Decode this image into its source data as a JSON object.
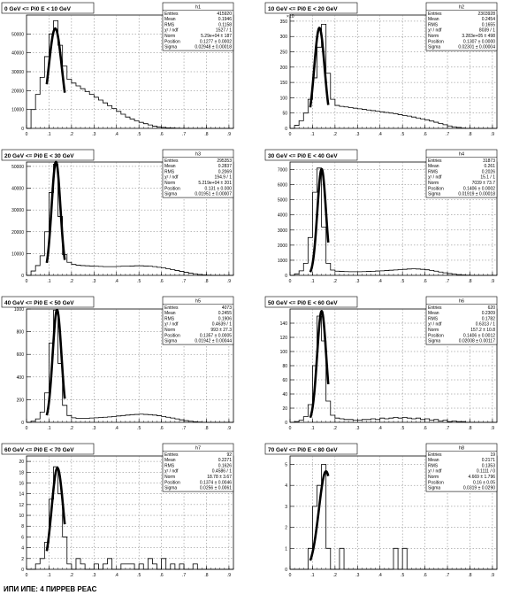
{
  "footer_text": "ИПИ ИПЕ: 4 ПИРРЕВ РЕАС",
  "chart_data": [
    {
      "type": "histogram",
      "title": "0 GeV <= Pi0 E < 10 GeV",
      "x_range": [
        0,
        0.92
      ],
      "xticks": [
        0,
        0.1,
        0.2,
        0.3,
        0.4,
        0.5,
        0.6,
        0.7,
        0.8,
        0.9
      ],
      "ylim": [
        0,
        60000
      ],
      "yticks": [
        0,
        10000,
        20000,
        30000,
        40000,
        50000
      ],
      "ytick_labels": [
        "0",
        "10000",
        "20000",
        "30000",
        "40000",
        "50000"
      ],
      "y_exponent": "",
      "bin_width": 0.02,
      "bin_contents": [
        0,
        10000,
        18000,
        27000,
        38000,
        50000,
        57000,
        44000,
        33000,
        26000,
        24000,
        22500,
        21000,
        19500,
        18000,
        16500,
        15000,
        13500,
        12000,
        10500,
        9000,
        7500,
        6000,
        5000,
        4000,
        3200,
        2500,
        1800,
        1200,
        800,
        500,
        300,
        200,
        100,
        50,
        20,
        10,
        5,
        0,
        0,
        0,
        0,
        0,
        0,
        0,
        0
      ],
      "fit_range": [
        0.09,
        0.17
      ],
      "fit": {
        "norm": 52900,
        "mean": 0.1277,
        "sigma": 0.02948
      },
      "stats": {
        "name": "h1",
        "rows": [
          {
            "label": "Entries",
            "value": "415920"
          },
          {
            "label": "Mean",
            "value": "0.1946"
          },
          {
            "label": "RMS",
            "value": "0.1158"
          },
          {
            "label": "χ² / ndf",
            "value": "1527 / 1"
          },
          {
            "label": "Norm",
            "value": "5.29e+04 ± 187"
          },
          {
            "label": "Position",
            "value": "0.1277 ± 0.0002"
          },
          {
            "label": "Sigma",
            "value": "0.02948 ± 0.00018"
          }
        ]
      }
    },
    {
      "type": "histogram",
      "title": "10 GeV <= Pi0 E < 20 GeV",
      "x_range": [
        0,
        0.92
      ],
      "xticks": [
        0,
        0.1,
        0.2,
        0.3,
        0.4,
        0.5,
        0.6,
        0.7,
        0.8,
        0.9
      ],
      "ylim": [
        0,
        370
      ],
      "yticks": [
        0,
        50,
        100,
        150,
        200,
        250,
        300,
        350
      ],
      "ytick_labels": [
        "0",
        "50",
        "100",
        "150",
        "200",
        "250",
        "300",
        "350"
      ],
      "y_exponent": "×10",
      "bin_width": 0.02,
      "bin_contents": [
        0,
        10,
        25,
        50,
        95,
        165,
        265,
        340,
        180,
        95,
        75,
        72,
        70,
        68,
        66,
        64,
        62,
        60,
        58,
        56,
        54,
        52,
        50,
        48,
        45,
        42,
        40,
        37,
        34,
        31,
        28,
        24,
        20,
        16,
        12,
        8,
        5,
        3,
        1,
        0,
        0,
        0,
        0,
        0,
        0,
        0
      ],
      "fit_range": [
        0.09,
        0.17
      ],
      "fit": {
        "norm": 328.3,
        "mean": 0.1307,
        "sigma": 0.02301
      },
      "stats": {
        "name": "h2",
        "rows": [
          {
            "label": "Entries",
            "value": "2303928"
          },
          {
            "label": "Mean",
            "value": "0.2454"
          },
          {
            "label": "RMS",
            "value": "0.1655"
          },
          {
            "label": "χ² / ndf",
            "value": "8039 / 1"
          },
          {
            "label": "Norm",
            "value": "3.283e+05 ± 498"
          },
          {
            "label": "Position",
            "value": "0.1307 ± 0.0000"
          },
          {
            "label": "Sigma",
            "value": "0.02301 ± 0.00004"
          }
        ]
      }
    },
    {
      "type": "histogram",
      "title": "20 GeV <= Pi0 E < 30 GeV",
      "x_range": [
        0,
        0.92
      ],
      "xticks": [
        0,
        0.1,
        0.2,
        0.3,
        0.4,
        0.5,
        0.6,
        0.7,
        0.8,
        0.9
      ],
      "ylim": [
        0,
        52000
      ],
      "yticks": [
        0,
        10000,
        20000,
        30000,
        40000,
        50000
      ],
      "ytick_labels": [
        "0",
        "10000",
        "20000",
        "30000",
        "40000",
        "50000"
      ],
      "y_exponent": "",
      "bin_width": 0.02,
      "bin_contents": [
        0,
        2000,
        4500,
        9000,
        20000,
        38000,
        51000,
        27000,
        9500,
        6000,
        5000,
        4700,
        4500,
        4400,
        4300,
        4200,
        4100,
        4000,
        4000,
        4000,
        4100,
        4200,
        4200,
        4300,
        4400,
        4400,
        4300,
        4200,
        4000,
        3700,
        3400,
        3000,
        2600,
        2200,
        1800,
        1400,
        1000,
        700,
        400,
        200,
        100,
        0,
        0,
        0,
        0,
        0
      ],
      "fit_range": [
        0.09,
        0.17
      ],
      "fit": {
        "norm": 52190,
        "mean": 0.131,
        "sigma": 0.01951
      },
      "stats": {
        "name": "h3",
        "rows": [
          {
            "label": "Entries",
            "value": "295353"
          },
          {
            "label": "Mean",
            "value": "0.2837"
          },
          {
            "label": "RMS",
            "value": "0.2069"
          },
          {
            "label": "χ² / ndf",
            "value": "194.9 / 1"
          },
          {
            "label": "Norm",
            "value": "5.219e+04 ± 201"
          },
          {
            "label": "Position",
            "value": "0.131 ± 0.000"
          },
          {
            "label": "Sigma",
            "value": "0.01951 ± 0.00007"
          }
        ]
      }
    },
    {
      "type": "histogram",
      "title": "30 GeV <= Pi0 E < 40 GeV",
      "x_range": [
        0,
        0.92
      ],
      "xticks": [
        0,
        0.1,
        0.2,
        0.3,
        0.4,
        0.5,
        0.6,
        0.7,
        0.8,
        0.9
      ],
      "ylim": [
        0,
        7500
      ],
      "yticks": [
        0,
        1000,
        2000,
        3000,
        4000,
        5000,
        6000,
        7000
      ],
      "ytick_labels": [
        "0",
        "1000",
        "2000",
        "3000",
        "4000",
        "5000",
        "6000",
        "7000"
      ],
      "y_exponent": "",
      "bin_width": 0.02,
      "bin_contents": [
        0,
        100,
        300,
        800,
        2500,
        5500,
        7100,
        3200,
        800,
        350,
        280,
        260,
        250,
        240,
        240,
        240,
        250,
        260,
        270,
        290,
        300,
        320,
        340,
        360,
        380,
        400,
        420,
        430,
        420,
        400,
        370,
        330,
        280,
        220,
        170,
        120,
        80,
        50,
        30,
        10,
        0,
        0,
        0,
        0,
        0,
        0
      ],
      "fit_range": [
        0.09,
        0.17
      ],
      "fit": {
        "norm": 7039,
        "mean": 0.1406,
        "sigma": 0.01919
      },
      "stats": {
        "name": "h4",
        "rows": [
          {
            "label": "Entries",
            "value": "31873"
          },
          {
            "label": "Mean",
            "value": "0.261"
          },
          {
            "label": "RMS",
            "value": "0.2026"
          },
          {
            "label": "χ² / ndf",
            "value": "15.1 / 1"
          },
          {
            "label": "Norm",
            "value": "7039 ± 73.7"
          },
          {
            "label": "Position",
            "value": "0.1406 ± 0.0002"
          },
          {
            "label": "Sigma",
            "value": "0.01919 ± 0.00018"
          }
        ]
      }
    },
    {
      "type": "histogram",
      "title": "40 GeV <= Pi0 E < 50 GeV",
      "x_range": [
        0,
        0.92
      ],
      "xticks": [
        0,
        0.1,
        0.2,
        0.3,
        0.4,
        0.5,
        0.6,
        0.7,
        0.8,
        0.9
      ],
      "ylim": [
        0,
        1000
      ],
      "yticks": [
        0,
        200,
        400,
        600,
        800,
        1000
      ],
      "ytick_labels": [
        "0",
        "200",
        "400",
        "600",
        "800",
        "1000"
      ],
      "y_exponent": "",
      "bin_width": 0.02,
      "bin_contents": [
        0,
        10,
        30,
        90,
        260,
        700,
        990,
        520,
        150,
        60,
        40,
        35,
        35,
        35,
        38,
        40,
        42,
        45,
        48,
        52,
        56,
        60,
        64,
        68,
        70,
        72,
        70,
        68,
        64,
        58,
        52,
        45,
        38,
        30,
        22,
        15,
        10,
        6,
        3,
        1,
        0,
        0,
        0,
        0,
        0,
        0
      ],
      "fit_range": [
        0.09,
        0.17
      ],
      "fit": {
        "norm": 993,
        "mean": 0.1357,
        "sigma": 0.01942
      },
      "stats": {
        "name": "h5",
        "rows": [
          {
            "label": "Entries",
            "value": "4073"
          },
          {
            "label": "Mean",
            "value": "0.2455"
          },
          {
            "label": "RMS",
            "value": "0.1906"
          },
          {
            "label": "χ² / ndf",
            "value": "0.4639 / 1"
          },
          {
            "label": "Norm",
            "value": "993 ± 27.3"
          },
          {
            "label": "Position",
            "value": "0.1357 ± 0.0005"
          },
          {
            "label": "Sigma",
            "value": "0.01942 ± 0.00044"
          }
        ]
      }
    },
    {
      "type": "histogram",
      "title": "50 GeV <= Pi0 E < 60 GeV",
      "x_range": [
        0,
        0.92
      ],
      "xticks": [
        0,
        0.1,
        0.2,
        0.3,
        0.4,
        0.5,
        0.6,
        0.7,
        0.8,
        0.9
      ],
      "ylim": [
        0,
        160
      ],
      "yticks": [
        0,
        20,
        40,
        60,
        80,
        100,
        120,
        140
      ],
      "ytick_labels": [
        "0",
        "20",
        "40",
        "60",
        "80",
        "100",
        "120",
        "140"
      ],
      "y_exponent": "",
      "bin_width": 0.02,
      "bin_contents": [
        0,
        1,
        3,
        8,
        25,
        80,
        150,
        115,
        30,
        10,
        6,
        5,
        4,
        4,
        3,
        3,
        4,
        4,
        5,
        4,
        6,
        5,
        6,
        7,
        6,
        7,
        6,
        5,
        6,
        4,
        5,
        3,
        4,
        2,
        3,
        1,
        2,
        1,
        1,
        0,
        0,
        0,
        0,
        0,
        0,
        0
      ],
      "fit_range": [
        0.09,
        0.17
      ],
      "fit": {
        "norm": 157.2,
        "mean": 0.1406,
        "sigma": 0.02008
      },
      "stats": {
        "name": "h6",
        "rows": [
          {
            "label": "Entries",
            "value": "620"
          },
          {
            "label": "Mean",
            "value": "0.2309"
          },
          {
            "label": "RMS",
            "value": "0.1782"
          },
          {
            "label": "χ² / ndf",
            "value": "0.6313 / 1"
          },
          {
            "label": "Norm",
            "value": "157.2 ± 10.8"
          },
          {
            "label": "Position",
            "value": "0.1406 ± 0.0012"
          },
          {
            "label": "Sigma",
            "value": "0.02008 ± 0.00117"
          }
        ]
      }
    },
    {
      "type": "histogram",
      "title": "60 GeV <= Pi0 E < 70 GeV",
      "x_range": [
        0,
        0.92
      ],
      "xticks": [
        0,
        0.1,
        0.2,
        0.3,
        0.4,
        0.5,
        0.6,
        0.7,
        0.8,
        0.9
      ],
      "ylim": [
        0,
        21
      ],
      "yticks": [
        0,
        2,
        4,
        6,
        8,
        10,
        12,
        14,
        16,
        18,
        20
      ],
      "ytick_labels": [
        "0",
        "2",
        "4",
        "6",
        "8",
        "10",
        "12",
        "14",
        "16",
        "18",
        "20"
      ],
      "y_exponent": "",
      "bin_width": 0.02,
      "bin_contents": [
        0,
        0,
        1,
        2,
        5,
        13,
        19,
        14,
        6,
        1,
        0,
        2,
        1,
        0,
        0,
        1,
        0,
        1,
        2,
        0,
        0,
        1,
        1,
        1,
        0,
        1,
        0,
        2,
        1,
        0,
        2,
        0,
        1,
        0,
        1,
        0,
        0,
        1,
        0,
        0,
        0,
        0,
        0,
        0,
        0,
        0
      ],
      "fit_range": [
        0.09,
        0.17
      ],
      "fit": {
        "norm": 18.78,
        "mean": 0.1374,
        "sigma": 0.0256
      },
      "stats": {
        "name": "h7",
        "rows": [
          {
            "label": "Entries",
            "value": "92"
          },
          {
            "label": "Mean",
            "value": "0.2271"
          },
          {
            "label": "RMS",
            "value": "0.1626"
          },
          {
            "label": "χ² / ndf",
            "value": "0.4586 / 1"
          },
          {
            "label": "Norm",
            "value": "18.78 ± 3.67"
          },
          {
            "label": "Position",
            "value": "0.1374 ± 0.0046"
          },
          {
            "label": "Sigma",
            "value": "0.0256 ± 0.0061"
          }
        ]
      }
    },
    {
      "type": "histogram",
      "title": "70 GeV <= Pi0 E < 80 GeV",
      "x_range": [
        0,
        0.92
      ],
      "xticks": [
        0,
        0.1,
        0.2,
        0.3,
        0.4,
        0.5,
        0.6,
        0.7,
        0.8,
        0.9
      ],
      "ylim": [
        0,
        5.4
      ],
      "yticks": [
        0,
        1,
        2,
        3,
        4,
        5
      ],
      "ytick_labels": [
        "0",
        "1",
        "2",
        "3",
        "4",
        "5"
      ],
      "y_exponent": "",
      "bin_width": 0.02,
      "bin_contents": [
        0,
        0,
        0,
        0,
        1,
        3,
        4,
        5,
        1,
        0,
        0,
        1,
        0,
        0,
        0,
        0,
        0,
        0,
        0,
        0,
        0,
        0,
        0,
        1,
        0,
        1,
        0,
        0,
        0,
        0,
        0,
        0,
        0,
        0,
        0,
        0,
        0,
        0,
        0,
        0,
        0,
        0,
        0,
        0,
        0,
        0
      ],
      "fit_range": [
        0.09,
        0.17
      ],
      "fit": {
        "norm": 4.669,
        "mean": 0.16,
        "sigma": 0.0319
      },
      "stats": {
        "name": "h8",
        "rows": [
          {
            "label": "Entries",
            "value": "19"
          },
          {
            "label": "Mean",
            "value": "0.2171"
          },
          {
            "label": "RMS",
            "value": "0.1353"
          },
          {
            "label": "χ² / ndf",
            "value": "0.1111 / 0"
          },
          {
            "label": "Norm",
            "value": "4.669 ± 1.796"
          },
          {
            "label": "Position",
            "value": "0.16 ± 0.05"
          },
          {
            "label": "Sigma",
            "value": "0.0319 ± 0.0290"
          }
        ]
      }
    }
  ]
}
